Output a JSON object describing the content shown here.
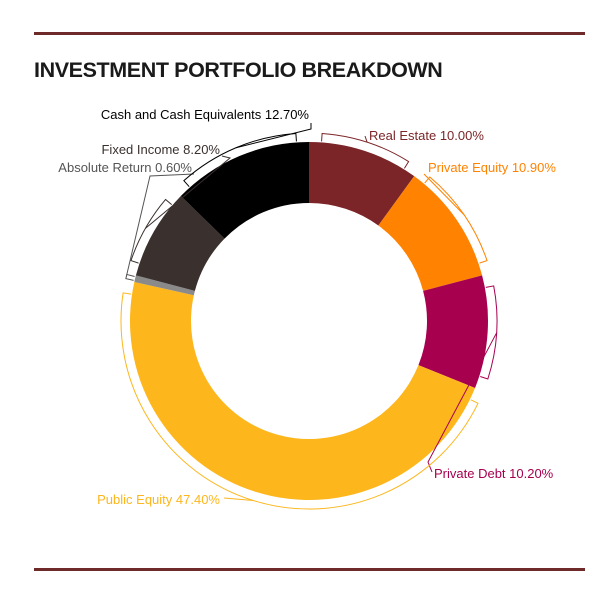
{
  "header": {
    "title": "INVESTMENT PORTFOLIO BREAKDOWN"
  },
  "chart_data": {
    "type": "pie",
    "variant": "donut",
    "title": "INVESTMENT PORTFOLIO BREAKDOWN",
    "categories": [
      "Real Estate",
      "Private Equity",
      "Private Debt",
      "Public Equity",
      "Absolute Return",
      "Fixed Income",
      "Cash and Cash Equivalents"
    ],
    "values": [
      10.0,
      10.9,
      10.2,
      47.4,
      0.6,
      8.2,
      12.7
    ],
    "labels": [
      "Real Estate 10.00%",
      "Private Equity 10.90%",
      "Private Debt 10.20%",
      "Public Equity 47.40%",
      "Absolute Return 0.60%",
      "Fixed Income 8.20%",
      "Cash and Cash Equivalents 12.70%"
    ],
    "colors": [
      "#7b2528",
      "#ff8200",
      "#a6004f",
      "#fdb61c",
      "#8a8a8a",
      "#3a302e",
      "#000000"
    ],
    "label_colors": [
      "#7b2528",
      "#ff8200",
      "#a6004f",
      "#fdb61c",
      "#555555",
      "#3a302e",
      "#000000"
    ],
    "unit": "%",
    "legend": "none"
  }
}
